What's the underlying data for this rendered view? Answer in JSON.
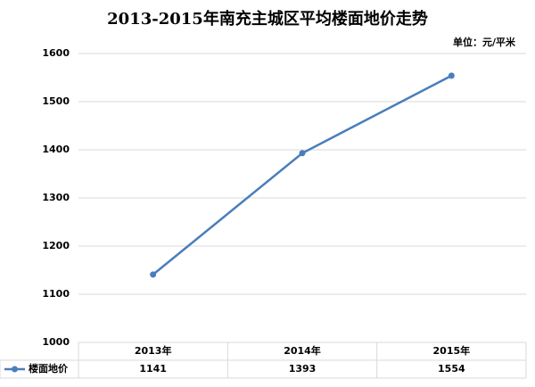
{
  "chart_data": {
    "type": "line",
    "title": "2013-2015年南充主城区平均楼面地价走势",
    "unit": "单位：元/平米",
    "categories": [
      "2013年",
      "2014年",
      "2015年"
    ],
    "series": [
      {
        "name": "楼面地价",
        "color": "#4a7ebb",
        "values": [
          1141,
          1393,
          1554
        ]
      }
    ],
    "ylim": [
      1000,
      1600
    ],
    "yticks": [
      1000,
      1100,
      1200,
      1300,
      1400,
      1500,
      1600
    ],
    "grid": true,
    "data_table": true
  }
}
